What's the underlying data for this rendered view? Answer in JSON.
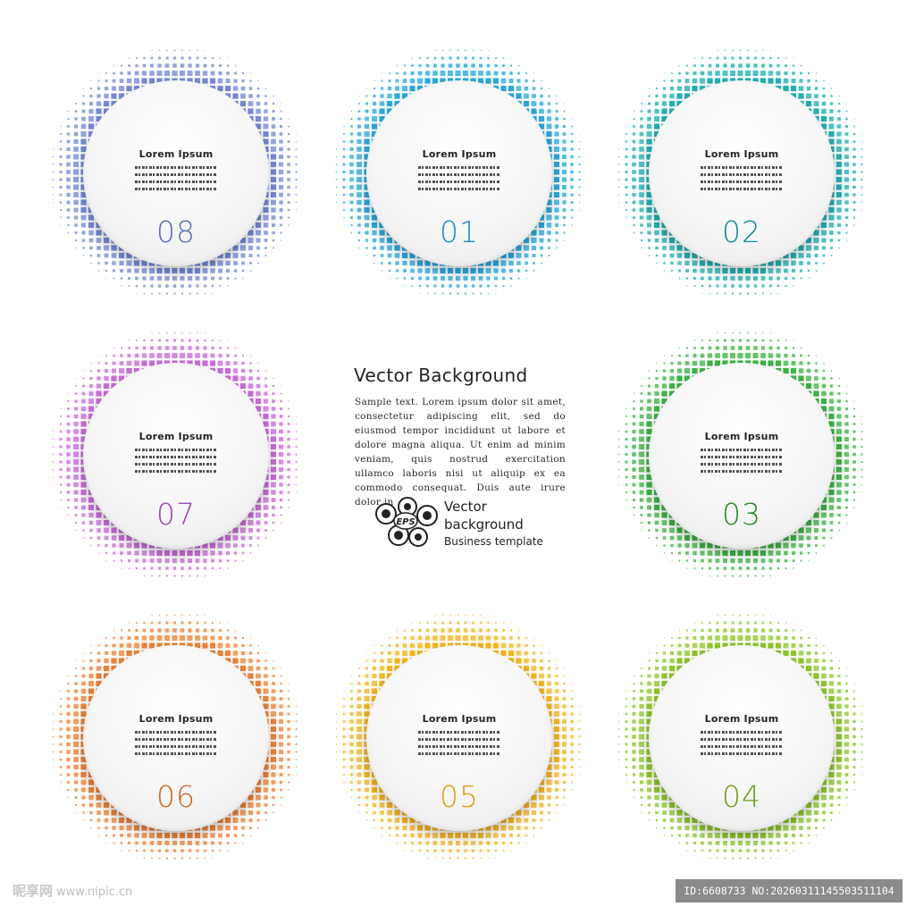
{
  "cards": [
    {
      "number": "08",
      "title": "Lorem Ipsum",
      "color": "#6f85d8",
      "num_color": "#5a6fb5"
    },
    {
      "number": "01",
      "title": "Lorem Ipsum",
      "color": "#1ea5e0",
      "num_color": "#1a8fc7"
    },
    {
      "number": "02",
      "title": "Lorem Ipsum",
      "color": "#16aeb0",
      "num_color": "#0f8f95"
    },
    {
      "number": "07",
      "title": "Lorem Ipsum",
      "color": "#c765d9",
      "num_color": "#9b4ab0"
    },
    {
      "number": "03",
      "title": "Lorem Ipsum",
      "color": "#33b13a",
      "num_color": "#238a2a"
    },
    {
      "number": "06",
      "title": "Lorem Ipsum",
      "color": "#f07c2c",
      "num_color": "#d0651c"
    },
    {
      "number": "05",
      "title": "Lorem Ipsum",
      "color": "#f5b211",
      "num_color": "#e0a010"
    },
    {
      "number": "04",
      "title": "Lorem Ipsum",
      "color": "#88c51f",
      "num_color": "#6fa018"
    }
  ],
  "center": {
    "title": "Vector Background",
    "body": "Sample text. Lorem ipsum dolor sit amet, consectetur adipiscing elit, sed do eiusmod tempor incididunt ut labore et dolore magna aliqua. Ut enim ad minim veniam, quis nostrud exercitation ullamco laboris nisi ut aliquip ex ea commodo consequat. Duis aute irure dolor in"
  },
  "logo": {
    "badge": "EPS",
    "line1": "Vector",
    "line2": "background",
    "line3": "Business template"
  },
  "watermark": {
    "site": "昵享网",
    "url": "www.nipic.cn",
    "id_text": "ID:6608733 NO:20260311145503511104"
  }
}
